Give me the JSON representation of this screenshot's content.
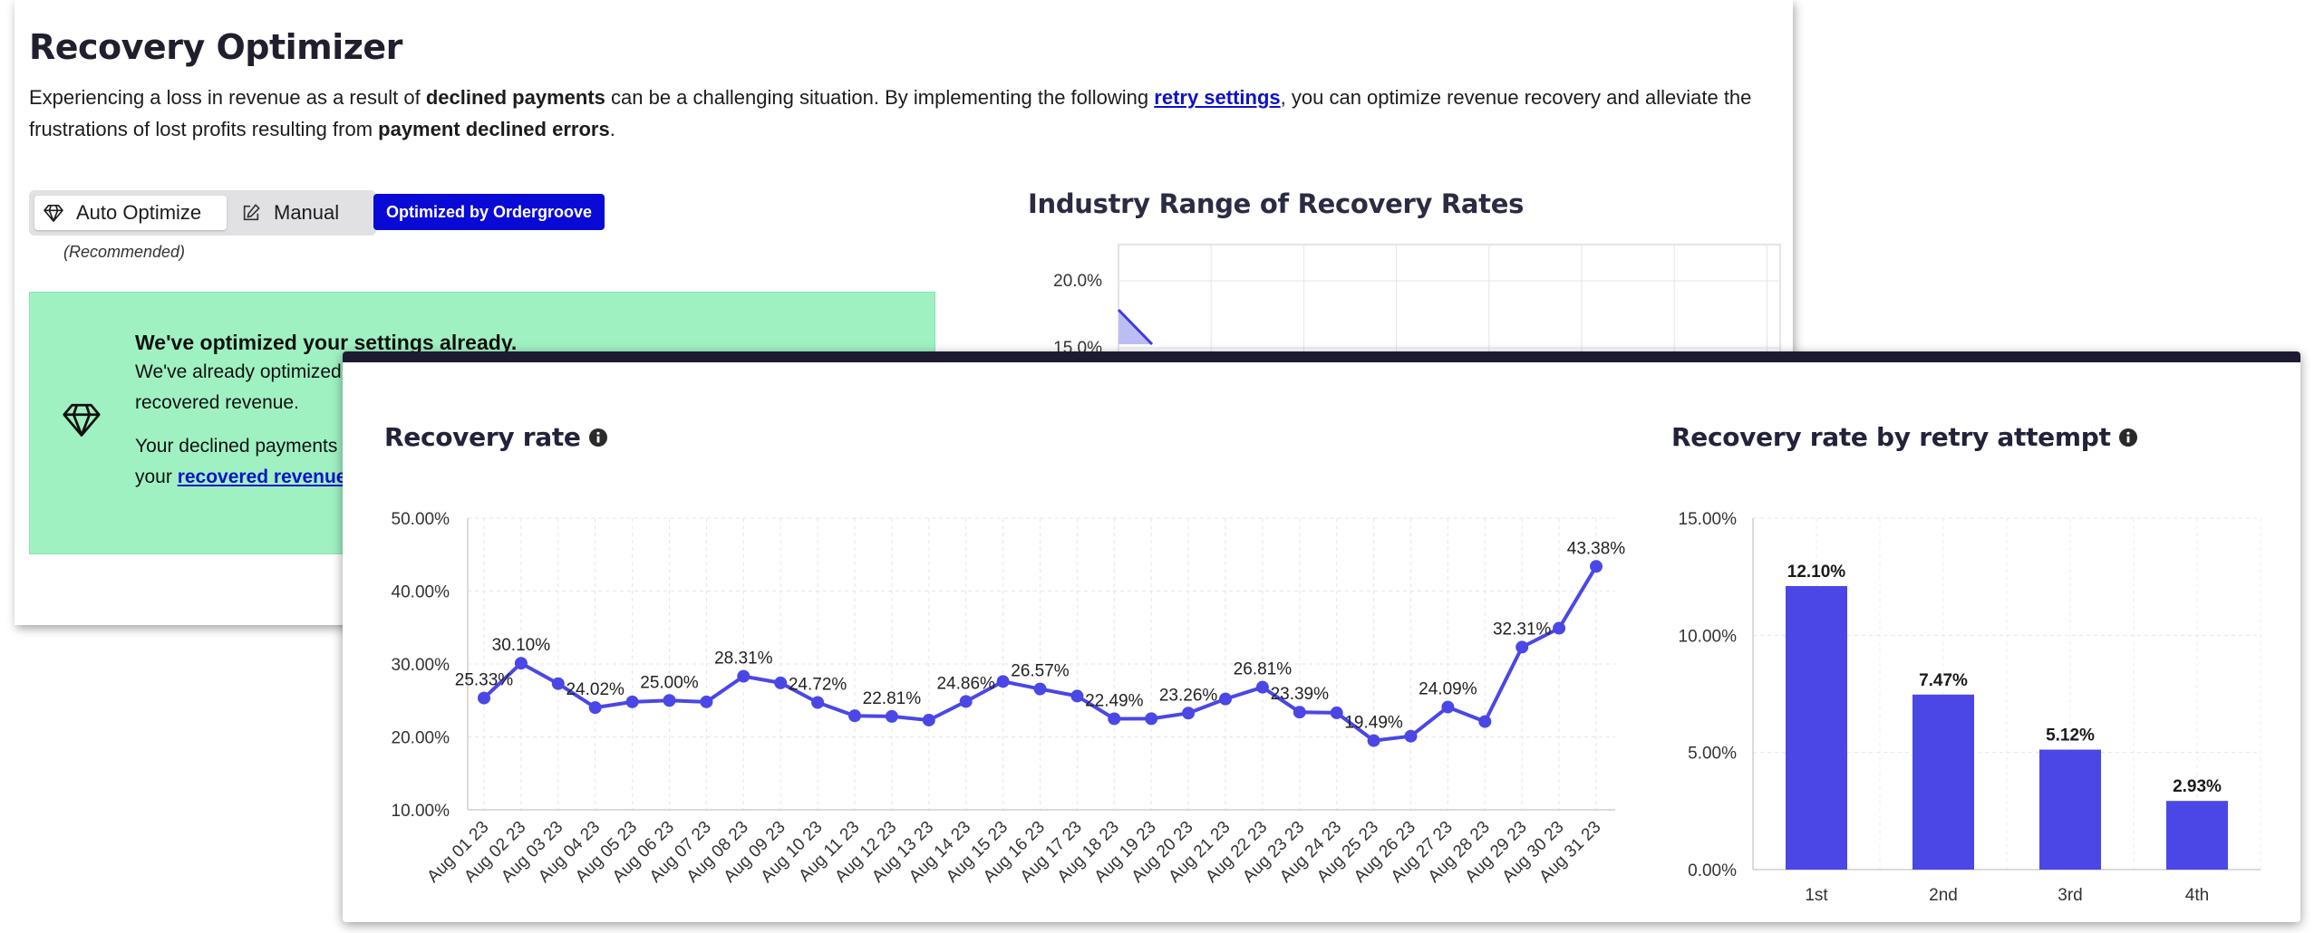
{
  "page": {
    "title": "Recovery Optimizer",
    "intro": {
      "part1": "Experiencing a loss in revenue as a result of ",
      "bold1": "declined payments",
      "part2": " can be a challenging situation. By implementing the following ",
      "link": "retry settings",
      "part3": ", you can optimize revenue recovery and alleviate the frustrations of lost profits resulting from ",
      "bold2": "payment declined errors",
      "part4": "."
    },
    "mode_toggle": {
      "auto_label": "Auto Optimize",
      "manual_label": "Manual",
      "recommended_note": "(Recommended)"
    },
    "badge": "Optimized by Ordergroove",
    "callout": {
      "title": "We've optimized your settings already.",
      "line1": "We've already optimized",
      "line2": "recovered revenue.",
      "line3": "Your declined payments",
      "line4_prefix": "your ",
      "line4_link": "recovered revenue"
    },
    "industry_chart": {
      "title": "Industry Range of Recovery Rates",
      "y_tick": "20.0%",
      "y_tick_partial": "15.0%"
    }
  },
  "card": {
    "recovery_rate_title": "Recovery rate",
    "retry_attempt_title": "Recovery rate by retry attempt"
  },
  "colors": {
    "accent": "#4a47e6",
    "badge": "#0a0ad6",
    "callout_bg": "#9ff1c2",
    "card_top_border": "#1d1a33",
    "link": "#0b12c6"
  },
  "icons": {
    "auto_optimize": "gem-icon",
    "manual": "edit-icon",
    "callout": "gem-icon",
    "info": "info-icon"
  },
  "chart_data": [
    {
      "type": "line",
      "title": "Recovery rate",
      "x": [
        "Aug 01 23",
        "Aug 02 23",
        "Aug 03 23",
        "Aug 04 23",
        "Aug 05 23",
        "Aug 06 23",
        "Aug 07 23",
        "Aug 08 23",
        "Aug 09 23",
        "Aug 10 23",
        "Aug 11 23",
        "Aug 12 23",
        "Aug 13 23",
        "Aug 14 23",
        "Aug 15 23",
        "Aug 16 23",
        "Aug 17 23",
        "Aug 18 23",
        "Aug 19 23",
        "Aug 20 23",
        "Aug 21 23",
        "Aug 22 23",
        "Aug 23 23",
        "Aug 24 23",
        "Aug 25 23",
        "Aug 26 23",
        "Aug 27 23",
        "Aug 28 23",
        "Aug 29 23",
        "Aug 30 23",
        "Aug 31 23"
      ],
      "values": [
        25.33,
        30.1,
        27.3,
        24.02,
        24.8,
        25.0,
        24.8,
        28.31,
        27.4,
        24.72,
        22.9,
        22.81,
        22.3,
        24.86,
        27.6,
        26.57,
        25.6,
        22.49,
        22.5,
        23.26,
        25.2,
        26.81,
        23.39,
        23.3,
        19.49,
        20.1,
        24.09,
        22.1,
        32.31,
        34.9,
        43.38
      ],
      "data_labels": [
        {
          "index": 0,
          "text": "25.33%"
        },
        {
          "index": 1,
          "text": "30.10%"
        },
        {
          "index": 3,
          "text": "24.02%"
        },
        {
          "index": 5,
          "text": "25.00%"
        },
        {
          "index": 7,
          "text": "28.31%"
        },
        {
          "index": 9,
          "text": "24.72%"
        },
        {
          "index": 11,
          "text": "22.81%"
        },
        {
          "index": 13,
          "text": "24.86%"
        },
        {
          "index": 15,
          "text": "26.57%"
        },
        {
          "index": 17,
          "text": "22.49%"
        },
        {
          "index": 19,
          "text": "23.26%"
        },
        {
          "index": 21,
          "text": "26.81%"
        },
        {
          "index": 22,
          "text": "23.39%"
        },
        {
          "index": 24,
          "text": "19.49%"
        },
        {
          "index": 26,
          "text": "24.09%"
        },
        {
          "index": 28,
          "text": "32.31%"
        },
        {
          "index": 30,
          "text": "43.38%"
        }
      ],
      "y_ticks": [
        "50.00%",
        "40.00%",
        "30.00%",
        "20.00%",
        "10.00%"
      ],
      "ylim": [
        10,
        50
      ],
      "grid": true,
      "legend": "none"
    },
    {
      "type": "bar",
      "title": "Recovery rate by retry attempt",
      "categories": [
        "1st",
        "2nd",
        "3rd",
        "4th"
      ],
      "values": [
        12.1,
        7.47,
        5.12,
        2.93
      ],
      "data_labels": [
        "12.10%",
        "7.47%",
        "5.12%",
        "2.93%"
      ],
      "y_ticks": [
        "15.00%",
        "10.00%",
        "5.00%",
        "0.00%"
      ],
      "ylim": [
        0,
        15
      ],
      "grid": true,
      "legend": "none"
    },
    {
      "type": "area",
      "title": "Industry Range of Recovery Rates",
      "y_ticks": [
        "20.0%",
        "15.0%"
      ],
      "grid": true,
      "legend": "none"
    }
  ]
}
